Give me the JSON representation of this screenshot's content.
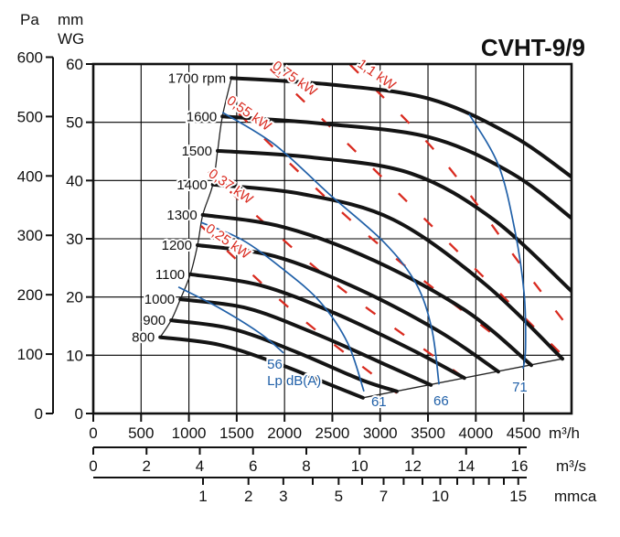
{
  "title": "CVHT-9/9",
  "y_axis_pa": {
    "label": "Pa",
    "ticks": [
      0,
      100,
      200,
      300,
      400,
      500,
      600
    ]
  },
  "y_axis_mmwg": {
    "label": "mm WG",
    "ticks": [
      0,
      10,
      20,
      30,
      40,
      50,
      60
    ]
  },
  "x_axis_m3h": {
    "unit": "m³/h",
    "ticks": [
      0,
      500,
      1000,
      1500,
      2000,
      2500,
      3000,
      3500,
      4000,
      4500
    ]
  },
  "x_axis_m3s": {
    "unit": "m³/s",
    "ticks": [
      0,
      2,
      4,
      6,
      8,
      10,
      12,
      14,
      16
    ]
  },
  "x_axis_mmca": {
    "unit": "mmca",
    "labeled_ticks": [
      1,
      2,
      3,
      5,
      7,
      10,
      15
    ],
    "minor_ticks": [
      1,
      2,
      3,
      4,
      5,
      6,
      7,
      8,
      9,
      10,
      11,
      12,
      13,
      14,
      15
    ]
  },
  "chart_data": {
    "type": "line",
    "title": "CVHT-9/9",
    "x_unit": "m³/h",
    "y_unit": "mm WG",
    "x_range": [
      0,
      5000
    ],
    "y_range": [
      0,
      60
    ],
    "grid": "on",
    "colors": {
      "fan_curve": "#141414",
      "power_curve": "#d92b20",
      "noise_curve": "#2060a8",
      "grid": "#000000"
    },
    "fan_curves": [
      {
        "rpm": 800,
        "label": "800",
        "points": [
          [
            700,
            13.1
          ],
          [
            1320,
            11.8
          ],
          [
            1940,
            8.5
          ],
          [
            2470,
            5.0
          ],
          [
            2820,
            2.7
          ]
        ]
      },
      {
        "rpm": 900,
        "label": "900",
        "points": [
          [
            815,
            16.0
          ],
          [
            1460,
            14.5
          ],
          [
            2130,
            10.5
          ],
          [
            2800,
            5.8
          ],
          [
            3175,
            3.8
          ]
        ]
      },
      {
        "rpm": 1000,
        "label": "1000",
        "points": [
          [
            910,
            19.6
          ],
          [
            1605,
            18.1
          ],
          [
            2325,
            13.7
          ],
          [
            3040,
            8.5
          ],
          [
            3530,
            4.9
          ]
        ]
      },
      {
        "rpm": 1100,
        "label": "1100",
        "points": [
          [
            1015,
            23.9
          ],
          [
            1750,
            22.0
          ],
          [
            2515,
            17.3
          ],
          [
            3325,
            11.0
          ],
          [
            3880,
            6.1
          ]
        ]
      },
      {
        "rpm": 1200,
        "label": "1200",
        "points": [
          [
            1090,
            28.9
          ],
          [
            1895,
            27.0
          ],
          [
            2755,
            21.5
          ],
          [
            3615,
            14.1
          ],
          [
            4235,
            7.2
          ]
        ]
      },
      {
        "rpm": 1300,
        "label": "1300",
        "points": [
          [
            1145,
            34.1
          ],
          [
            1990,
            32.0
          ],
          [
            2945,
            26.2
          ],
          [
            3900,
            17.6
          ],
          [
            4580,
            8.3
          ]
        ]
      },
      {
        "rpm": 1400,
        "label": "1400",
        "points": [
          [
            1250,
            39.3
          ],
          [
            2180,
            37.7
          ],
          [
            3135,
            33.3
          ],
          [
            4090,
            22.3
          ],
          [
            4905,
            9.4
          ]
        ]
      },
      {
        "rpm": 1500,
        "label": "1500",
        "points": [
          [
            1300,
            45.1
          ],
          [
            2275,
            44.0
          ],
          [
            3325,
            41.2
          ],
          [
            4185,
            33.3
          ],
          [
            5020,
            20.7
          ]
        ]
      },
      {
        "rpm": 1600,
        "label": "1600",
        "points": [
          [
            1350,
            51.0
          ],
          [
            2370,
            49.8
          ],
          [
            3520,
            47.4
          ],
          [
            4380,
            41.2
          ],
          [
            5020,
            33.3
          ]
        ]
      },
      {
        "rpm": 1700,
        "label": "1700 rpm",
        "points": [
          [
            1445,
            57.6
          ],
          [
            2465,
            56.5
          ],
          [
            3520,
            54.0
          ],
          [
            4380,
            47.7
          ],
          [
            5020,
            40.4
          ]
        ]
      }
    ],
    "power_curves": [
      {
        "label": "0,25 kW",
        "points": [
          [
            1128,
            32.2
          ],
          [
            2085,
            17.6
          ],
          [
            3175,
            3.5
          ]
        ]
      },
      {
        "label": "0,37 kW",
        "points": [
          [
            1205,
            41.5
          ],
          [
            2465,
            23.1
          ],
          [
            3880,
            6.1
          ]
        ]
      },
      {
        "label": "0,55 kW",
        "points": [
          [
            1350,
            54.2
          ],
          [
            2850,
            30.9
          ],
          [
            4580,
            8.6
          ]
        ]
      },
      {
        "label": "0,75 kW",
        "points": [
          [
            1730,
            61.1
          ],
          [
            3230,
            37.2
          ],
          [
            4925,
            9.7
          ]
        ]
      },
      {
        "label": "1,1 kW",
        "points": [
          [
            2610,
            61.1
          ],
          [
            3615,
            44.3
          ],
          [
            4475,
            25.4
          ],
          [
            5020,
            13.7
          ]
        ]
      }
    ],
    "noise_unit_label": "Lp dB(A)",
    "noise_curves": [
      {
        "label": "56",
        "points": [
          [
            890,
            21.7
          ],
          [
            1320,
            18.1
          ],
          [
            1750,
            13.7
          ],
          [
            1990,
            10.4
          ]
        ]
      },
      {
        "label": "61",
        "points": [
          [
            1128,
            32.8
          ],
          [
            1560,
            29.8
          ],
          [
            1990,
            24.7
          ],
          [
            2370,
            19.2
          ],
          [
            2660,
            12.1
          ],
          [
            2830,
            3.8
          ]
        ]
      },
      {
        "label": "66",
        "points": [
          [
            1350,
            51.7
          ],
          [
            1895,
            46.2
          ],
          [
            2465,
            37.7
          ],
          [
            3040,
            29.4
          ],
          [
            3375,
            22.3
          ],
          [
            3540,
            14.5
          ],
          [
            3615,
            5.0
          ]
        ]
      },
      {
        "label": "71",
        "points": [
          [
            3930,
            51.4
          ],
          [
            4235,
            42.7
          ],
          [
            4405,
            31.7
          ],
          [
            4505,
            20.7
          ],
          [
            4520,
            11.3
          ],
          [
            4495,
            7.7
          ]
        ]
      }
    ],
    "surge_line": [
      [
        700,
        13.1
      ],
      [
        815,
        16.0
      ],
      [
        910,
        19.6
      ],
      [
        1015,
        23.9
      ],
      [
        1090,
        28.9
      ],
      [
        1145,
        34.1
      ],
      [
        1250,
        39.3
      ],
      [
        1300,
        45.1
      ],
      [
        1350,
        51.0
      ],
      [
        1445,
        57.6
      ]
    ],
    "envelope_line": [
      [
        2820,
        2.7
      ],
      [
        4905,
        9.4
      ]
    ]
  }
}
